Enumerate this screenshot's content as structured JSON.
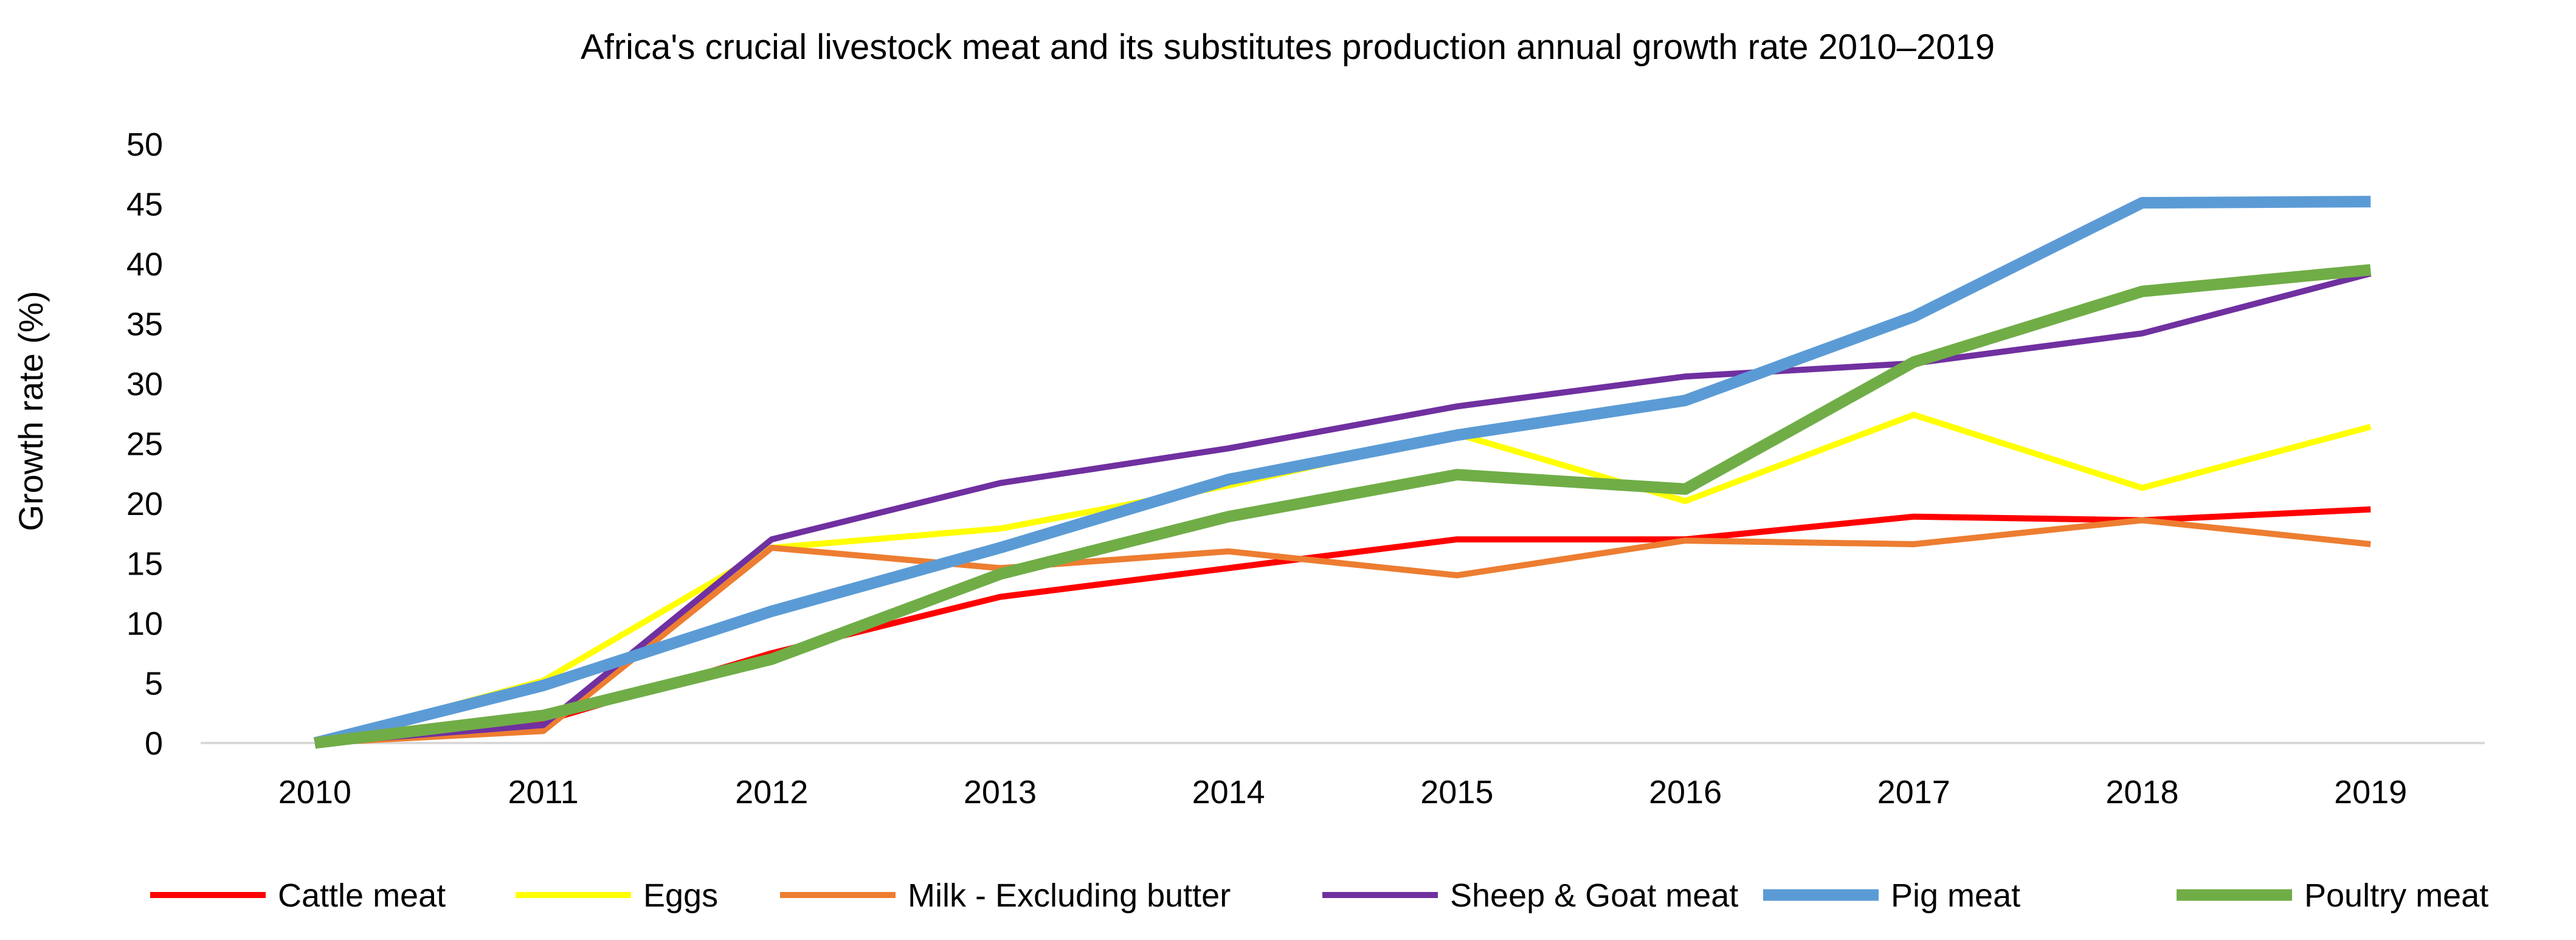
{
  "chart_data": {
    "type": "line",
    "title": "Africa's crucial livestock meat and its substitutes production annual growth rate 2010–2019",
    "xlabel": "",
    "ylabel": "Growth rate (%)",
    "categories": [
      "2010",
      "2011",
      "2012",
      "2013",
      "2014",
      "2015",
      "2016",
      "2017",
      "2018",
      "2019"
    ],
    "ylim": [
      0,
      50
    ],
    "yticks": [
      0,
      5,
      10,
      15,
      20,
      25,
      30,
      35,
      40,
      45,
      50
    ],
    "grid": false,
    "legend_position": "bottom",
    "series": [
      {
        "name": "Cattle meat",
        "color": "#ff0000",
        "values": [
          0,
          1.8,
          7.5,
          12.2,
          14.6,
          17.0,
          17.0,
          18.9,
          18.6,
          19.5
        ]
      },
      {
        "name": "Eggs",
        "color": "#ffff00",
        "values": [
          0,
          5.2,
          16.3,
          17.9,
          21.5,
          25.8,
          20.2,
          27.4,
          21.3,
          26.4
        ]
      },
      {
        "name": "Milk - Excluding butter",
        "color": "#ed7d31",
        "values": [
          0,
          1.0,
          16.3,
          14.6,
          16.0,
          14.0,
          16.9,
          16.6,
          18.6,
          16.6
        ]
      },
      {
        "name": "Sheep & Goat meat",
        "color": "#7030a0",
        "values": [
          0,
          1.5,
          17.0,
          21.7,
          24.6,
          28.1,
          30.6,
          31.7,
          34.2,
          39.2
        ]
      },
      {
        "name": "Pig meat",
        "color": "#5b9bd5",
        "values": [
          0,
          4.8,
          11.0,
          16.3,
          22.0,
          25.7,
          28.6,
          35.6,
          45.1,
          45.2
        ]
      },
      {
        "name": "Poultry meat",
        "color": "#70ad47",
        "values": [
          0,
          2.3,
          7.0,
          14.1,
          18.9,
          22.4,
          21.2,
          31.8,
          37.7,
          39.5
        ]
      }
    ]
  }
}
